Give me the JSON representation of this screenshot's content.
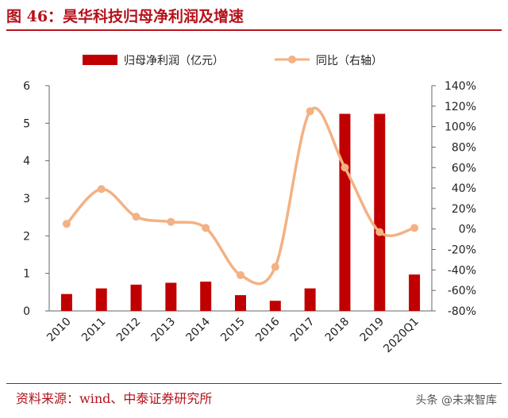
{
  "header": {
    "title": "图 46：昊华科技归母净利润及增速"
  },
  "footer": {
    "source": "资料来源：wind、中泰证券研究所",
    "watermark": "头条 @未来智库"
  },
  "colors": {
    "bar": "#c00000",
    "line": "#f4b183",
    "accent": "#b5121b"
  },
  "chart_data": {
    "type": "bar",
    "categories": [
      "2010",
      "2011",
      "2012",
      "2013",
      "2014",
      "2015",
      "2016",
      "2017",
      "2018",
      "2019",
      "2020Q1"
    ],
    "series": [
      {
        "name": "归母净利润（亿元）",
        "type": "bar",
        "axis": "left",
        "values": [
          0.45,
          0.6,
          0.7,
          0.75,
          0.78,
          0.42,
          0.27,
          0.6,
          5.25,
          5.25,
          0.97
        ]
      },
      {
        "name": "同比（右轴）",
        "type": "line",
        "axis": "right",
        "smooth": true,
        "values": [
          5,
          39,
          12,
          7,
          1,
          -45,
          -37,
          115,
          60,
          -3,
          1
        ]
      }
    ],
    "title": "",
    "ylim": [
      0,
      6
    ],
    "y_ticks": [
      "0",
      "1",
      "2",
      "3",
      "4",
      "5",
      "6"
    ],
    "y2lim": [
      -80,
      140
    ],
    "y2_ticks": [
      "-80%",
      "-60%",
      "-40%",
      "-20%",
      "0%",
      "20%",
      "40%",
      "60%",
      "80%",
      "100%",
      "120%",
      "140%"
    ],
    "legend_position": "top",
    "grid": false
  }
}
